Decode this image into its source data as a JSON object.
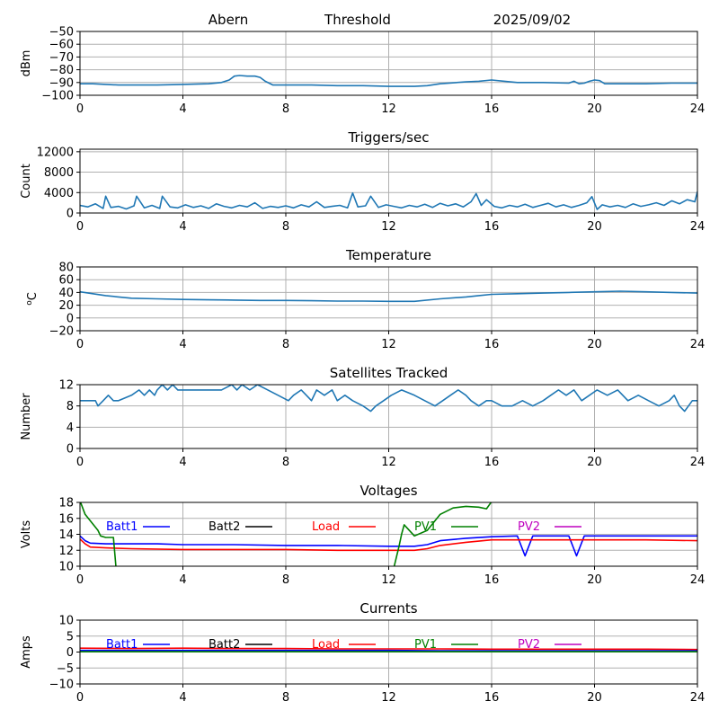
{
  "header": {
    "station": "Abern",
    "kind": "Threshold",
    "date": "2025/09/02"
  },
  "colors": {
    "series": "#1f77b4",
    "batt1": "#0000ff",
    "batt2": "#000000",
    "load": "#ff0000",
    "pv1": "#008000",
    "pv2": "#bf00bf"
  },
  "chart_data": [
    {
      "id": "threshold",
      "type": "line",
      "title": "",
      "ylabel": "dBm",
      "xlim": [
        0,
        24
      ],
      "ylim": [
        -100,
        -50
      ],
      "xticks": [
        0,
        4,
        8,
        12,
        16,
        20,
        24
      ],
      "yticks": [
        -100,
        -90,
        -80,
        -70,
        -60,
        -50
      ],
      "grid": true,
      "series": [
        {
          "color": "#1f77b4",
          "x": [
            0,
            0.5,
            1,
            1.5,
            2,
            3,
            4,
            5,
            5.5,
            5.8,
            6,
            6.2,
            6.5,
            6.8,
            7,
            7.2,
            7.5,
            8,
            9,
            10,
            11,
            12,
            13,
            13.5,
            14,
            15,
            15.5,
            16,
            16.5,
            17,
            18,
            19,
            19.2,
            19.4,
            19.6,
            19.8,
            20,
            20.2,
            20.4,
            20.6,
            21,
            22,
            23,
            24
          ],
          "y": [
            -91,
            -91,
            -91.5,
            -92,
            -92,
            -92,
            -91.5,
            -91,
            -90,
            -88,
            -85,
            -84.5,
            -85,
            -85,
            -86,
            -89,
            -92,
            -92,
            -92,
            -92.5,
            -92.5,
            -93,
            -93,
            -92.5,
            -91,
            -89.5,
            -89,
            -88,
            -89,
            -90,
            -90,
            -90.5,
            -89,
            -91,
            -90.5,
            -89,
            -88,
            -88.5,
            -91,
            -91,
            -91,
            -91,
            -90.5,
            -90.5
          ]
        }
      ]
    },
    {
      "id": "triggers",
      "type": "line",
      "title": "Triggers/sec",
      "ylabel": "Count",
      "xlim": [
        0,
        24
      ],
      "ylim": [
        0,
        12500
      ],
      "xticks": [
        0,
        4,
        8,
        12,
        16,
        20,
        24
      ],
      "yticks": [
        0,
        4000,
        8000,
        12000
      ],
      "grid": true,
      "series": [
        {
          "color": "#1f77b4",
          "x": [
            0,
            0.3,
            0.6,
            0.9,
            1.0,
            1.2,
            1.5,
            1.8,
            2.1,
            2.2,
            2.5,
            2.8,
            3.1,
            3.2,
            3.5,
            3.8,
            4.1,
            4.4,
            4.7,
            5.0,
            5.3,
            5.6,
            5.9,
            6.2,
            6.5,
            6.8,
            7.1,
            7.4,
            7.7,
            8.0,
            8.3,
            8.6,
            8.9,
            9.2,
            9.5,
            9.8,
            10.1,
            10.4,
            10.6,
            10.8,
            11.1,
            11.3,
            11.6,
            11.9,
            12.2,
            12.5,
            12.8,
            13.1,
            13.4,
            13.7,
            14.0,
            14.3,
            14.6,
            14.9,
            15.2,
            15.4,
            15.6,
            15.8,
            16.1,
            16.4,
            16.7,
            17.0,
            17.3,
            17.6,
            17.9,
            18.2,
            18.5,
            18.8,
            19.1,
            19.4,
            19.7,
            19.9,
            20.1,
            20.3,
            20.6,
            20.9,
            21.2,
            21.5,
            21.8,
            22.1,
            22.4,
            22.7,
            23.0,
            23.3,
            23.6,
            23.9,
            24
          ],
          "y": [
            1500,
            1200,
            1800,
            900,
            3300,
            1100,
            1300,
            800,
            1400,
            3300,
            1000,
            1500,
            900,
            3300,
            1200,
            1000,
            1600,
            1100,
            1400,
            900,
            1800,
            1300,
            1000,
            1500,
            1200,
            2000,
            900,
            1300,
            1100,
            1400,
            1000,
            1600,
            1200,
            2200,
            1100,
            1300,
            1500,
            1000,
            3900,
            1200,
            1400,
            3300,
            1100,
            1600,
            1300,
            1000,
            1500,
            1200,
            1700,
            1100,
            1900,
            1400,
            1800,
            1200,
            2200,
            3800,
            1500,
            2600,
            1300,
            1000,
            1500,
            1200,
            1700,
            1100,
            1500,
            1900,
            1200,
            1600,
            1100,
            1500,
            2000,
            3200,
            700,
            1600,
            1200,
            1500,
            1100,
            1800,
            1300,
            1600,
            2000,
            1500,
            2400,
            1800,
            2600,
            2200,
            4200
          ]
        }
      ]
    },
    {
      "id": "temperature",
      "type": "line",
      "title": "Temperature",
      "ylabel": "°C",
      "ylabel_sup": "o",
      "ylabel_base": "C",
      "xlim": [
        0,
        24
      ],
      "ylim": [
        -20,
        80
      ],
      "xticks": [
        0,
        4,
        8,
        12,
        16,
        20,
        24
      ],
      "yticks": [
        -20,
        0,
        20,
        40,
        60,
        80
      ],
      "grid": true,
      "series": [
        {
          "color": "#1f77b4",
          "x": [
            0,
            0.5,
            1,
            1.5,
            2,
            3,
            4,
            5,
            6,
            7,
            8,
            9,
            10,
            11,
            12,
            13,
            14,
            15,
            15.5,
            16,
            17,
            18,
            19,
            20,
            21,
            22,
            23,
            24
          ],
          "y": [
            41,
            38,
            35,
            33,
            31,
            30,
            29,
            28.5,
            28,
            27.5,
            27.5,
            27,
            26.5,
            26.5,
            26,
            26,
            30,
            33,
            35,
            37,
            38,
            39,
            40,
            41,
            42,
            41,
            40,
            39
          ]
        }
      ]
    },
    {
      "id": "satellites",
      "type": "line",
      "title": "Satellites Tracked",
      "ylabel": "Number",
      "xlim": [
        0,
        24
      ],
      "ylim": [
        0,
        12
      ],
      "xticks": [
        0,
        4,
        8,
        12,
        16,
        20,
        24
      ],
      "yticks": [
        0,
        4,
        8,
        12
      ],
      "grid": true,
      "series": [
        {
          "color": "#1f77b4",
          "x": [
            0,
            0.6,
            0.7,
            0.9,
            1.1,
            1.3,
            1.5,
            2.0,
            2.3,
            2.5,
            2.7,
            2.9,
            3.0,
            3.2,
            3.4,
            3.6,
            3.8,
            4.0,
            5.5,
            5.9,
            6.1,
            6.3,
            6.6,
            6.9,
            7.3,
            7.7,
            8.1,
            8.3,
            8.6,
            8.8,
            9.0,
            9.2,
            9.5,
            9.8,
            10.0,
            10.3,
            10.6,
            11.0,
            11.3,
            11.5,
            11.8,
            12.1,
            12.5,
            13.0,
            13.4,
            13.8,
            14.1,
            14.4,
            14.7,
            15.0,
            15.2,
            15.5,
            15.8,
            16.0,
            16.4,
            16.8,
            17.2,
            17.6,
            18.0,
            18.3,
            18.6,
            18.9,
            19.2,
            19.5,
            19.8,
            20.1,
            20.5,
            20.9,
            21.3,
            21.7,
            22.1,
            22.5,
            22.9,
            23.1,
            23.3,
            23.5,
            23.8,
            24
          ],
          "y": [
            9,
            9,
            8,
            9,
            10,
            9,
            9,
            10,
            11,
            10,
            11,
            10,
            11,
            12,
            11,
            12,
            11,
            11,
            11,
            12,
            11,
            12,
            11,
            12,
            11,
            10,
            9,
            10,
            11,
            10,
            9,
            11,
            10,
            11,
            9,
            10,
            9,
            8,
            7,
            8,
            9,
            10,
            11,
            10,
            9,
            8,
            9,
            10,
            11,
            10,
            9,
            8,
            9,
            9,
            8,
            8,
            9,
            8,
            9,
            10,
            11,
            10,
            11,
            9,
            10,
            11,
            10,
            11,
            9,
            10,
            9,
            8,
            9,
            10,
            8,
            7,
            9,
            9
          ]
        }
      ]
    },
    {
      "id": "voltages",
      "type": "line",
      "title": "Voltages",
      "ylabel": "Volts",
      "xlim": [
        0,
        24
      ],
      "ylim": [
        10,
        18
      ],
      "xticks": [
        0,
        4,
        8,
        12,
        16,
        20,
        24
      ],
      "yticks": [
        10,
        12,
        14,
        16,
        18
      ],
      "grid": true,
      "legend": [
        "Batt1",
        "Batt2",
        "Load",
        "PV1",
        "PV2"
      ],
      "series": [
        {
          "name": "Batt1",
          "color": "#0000ff",
          "x": [
            0,
            0.2,
            0.4,
            1,
            2,
            3,
            4,
            6,
            8,
            10,
            12,
            13,
            13.5,
            14,
            15,
            16,
            17,
            17.3,
            17.6,
            18,
            19,
            19.3,
            19.6,
            20,
            22,
            24
          ],
          "y": [
            13.8,
            13.2,
            12.9,
            12.8,
            12.8,
            12.8,
            12.7,
            12.7,
            12.6,
            12.6,
            12.5,
            12.5,
            12.7,
            13.2,
            13.5,
            13.7,
            13.8,
            11.3,
            13.8,
            13.8,
            13.8,
            11.3,
            13.8,
            13.8,
            13.8,
            13.8
          ]
        },
        {
          "name": "Load",
          "color": "#ff0000",
          "x": [
            0,
            0.2,
            0.4,
            1,
            2,
            4,
            6,
            8,
            10,
            12,
            13,
            13.5,
            14,
            15,
            16,
            18,
            20,
            22,
            24
          ],
          "y": [
            13.4,
            12.8,
            12.4,
            12.3,
            12.2,
            12.1,
            12.1,
            12.1,
            12.0,
            12.0,
            12.0,
            12.2,
            12.6,
            13.0,
            13.3,
            13.3,
            13.3,
            13.3,
            13.2
          ]
        },
        {
          "name": "PV1",
          "color": "#008000",
          "x": [
            0,
            0.2,
            0.5,
            0.7,
            0.8,
            1.0,
            1.3,
            1.4,
            12.2,
            12.4,
            12.5,
            12.6,
            13.0,
            13.5,
            14.0,
            14.5,
            15.0,
            15.5,
            15.8,
            16.0
          ],
          "y": [
            18.2,
            16.5,
            15.3,
            14.5,
            13.8,
            13.6,
            13.6,
            9.8,
            9.8,
            12.5,
            14.0,
            15.2,
            13.8,
            14.5,
            16.5,
            17.3,
            17.5,
            17.4,
            17.2,
            18.1
          ]
        }
      ]
    },
    {
      "id": "currents",
      "type": "line",
      "title": "Currents",
      "ylabel": "Amps",
      "xlim": [
        0,
        24
      ],
      "ylim": [
        -10,
        10
      ],
      "xticks": [
        0,
        4,
        8,
        12,
        16,
        20,
        24
      ],
      "yticks": [
        -10,
        -5,
        0,
        5,
        10
      ],
      "grid": true,
      "legend": [
        "Batt1",
        "Batt2",
        "Load",
        "PV1",
        "PV2"
      ],
      "series": [
        {
          "name": "Load",
          "color": "#ff0000",
          "x": [
            0,
            2,
            4,
            6,
            8,
            10,
            12,
            14,
            16,
            18,
            20,
            22,
            24
          ],
          "y": [
            1.2,
            1.1,
            1.2,
            1.1,
            1.1,
            1.0,
            1.0,
            1.0,
            0.9,
            0.9,
            0.9,
            0.9,
            0.8
          ]
        },
        {
          "name": "Batt1",
          "color": "#0000ff",
          "x": [
            0,
            2,
            4,
            6,
            8,
            10,
            12,
            14,
            16,
            18,
            20,
            22,
            24
          ],
          "y": [
            0.5,
            0.5,
            0.5,
            0.5,
            0.5,
            0.5,
            0.5,
            0.4,
            0.4,
            0.4,
            0.4,
            0.4,
            0.4
          ]
        },
        {
          "name": "PV1",
          "color": "#008000",
          "x": [
            0,
            4,
            8,
            12,
            16,
            20,
            24
          ],
          "y": [
            0.1,
            0.1,
            0.1,
            0.1,
            0.1,
            0.1,
            0.1
          ]
        }
      ]
    }
  ]
}
